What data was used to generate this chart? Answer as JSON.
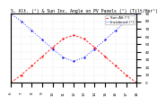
{
  "title": "S. Alt. (°) & Sun Inc. Angle on PV Panels (°) (Tilt/Her°)",
  "ylabel_right_values": [
    90,
    80,
    70,
    60,
    50,
    40,
    30,
    20,
    10,
    0
  ],
  "x_hours": [
    6,
    7,
    8,
    9,
    10,
    11,
    12,
    13,
    14,
    15,
    16,
    17,
    18
  ],
  "sun_altitude": [
    0,
    10,
    22,
    34,
    46,
    57,
    62,
    57,
    46,
    34,
    22,
    10,
    0
  ],
  "sun_incidence": [
    90,
    80,
    68,
    56,
    44,
    33,
    28,
    33,
    44,
    56,
    68,
    80,
    90
  ],
  "alt_color": "#ff0000",
  "inc_color": "#0000ff",
  "background_color": "#ffffff",
  "grid_color": "#888888",
  "title_fontsize": 3.5,
  "tick_fontsize": 3.0,
  "legend_fontsize": 3.0,
  "ylim": [
    0,
    90
  ],
  "xlim": [
    6,
    18
  ],
  "legend_items": [
    "Sun Alt (°)",
    "Incidence (°)"
  ]
}
